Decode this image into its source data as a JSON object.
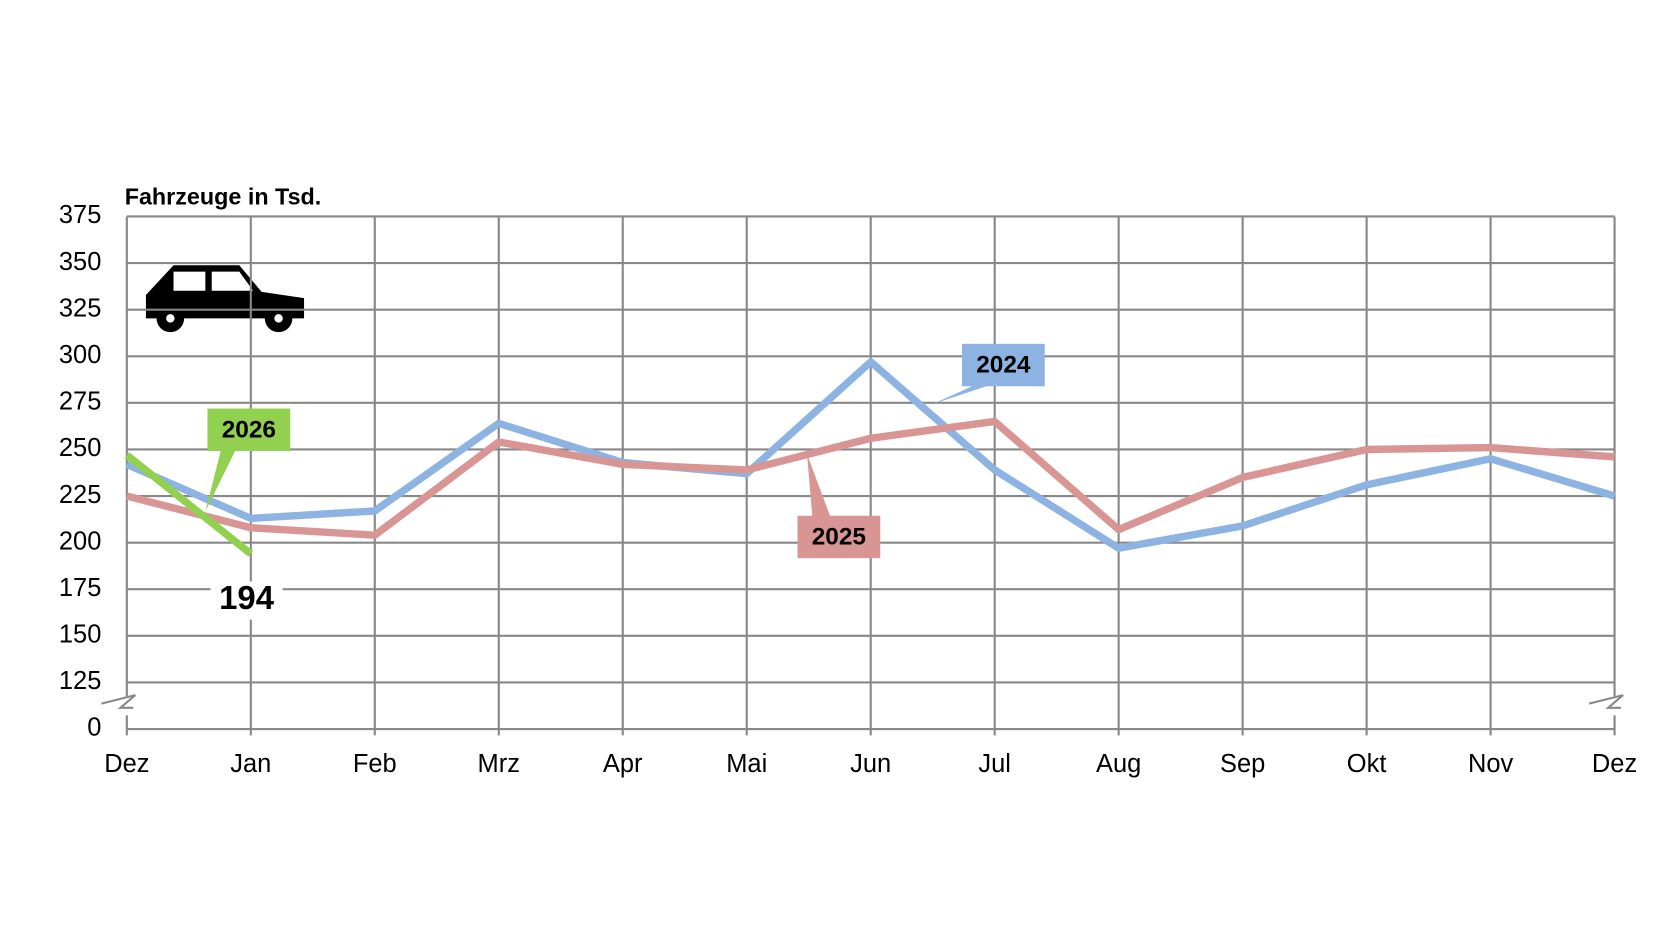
{
  "chart_data": {
    "type": "line",
    "y_label": "Fahrzeuge in Tsd.",
    "categories": [
      "Dez",
      "Jan",
      "Feb",
      "Mrz",
      "Apr",
      "Mai",
      "Jun",
      "Jul",
      "Aug",
      "Sep",
      "Okt",
      "Nov",
      "Dez"
    ],
    "series": [
      {
        "name": "2024",
        "color": "#8db3e2",
        "values": [
          242,
          213,
          217,
          264,
          243,
          237,
          297,
          239,
          197,
          209,
          231,
          245,
          225
        ]
      },
      {
        "name": "2025",
        "color": "#d99594",
        "values": [
          225,
          208,
          204,
          254,
          242,
          239,
          256,
          265,
          207,
          235,
          250,
          251,
          246
        ]
      },
      {
        "name": "2026",
        "color": "#92d050",
        "values": [
          247,
          194,
          null,
          null,
          null,
          null,
          null,
          null,
          null,
          null,
          null,
          null,
          null
        ]
      }
    ],
    "ylim": [
      0,
      375
    ],
    "yticks": [
      0,
      125,
      150,
      175,
      200,
      225,
      250,
      275,
      300,
      325,
      350,
      375
    ],
    "axis_break": true,
    "grid": true
  }
}
